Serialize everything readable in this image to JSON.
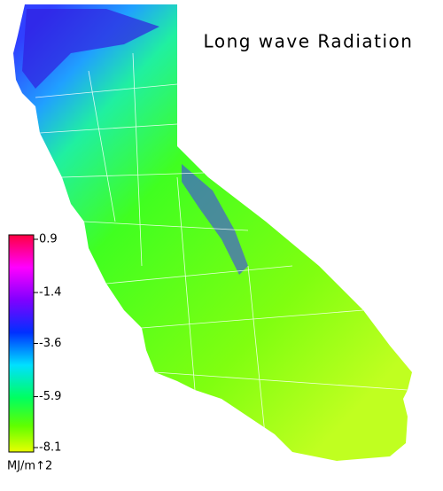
{
  "title": "Long wave Radiation",
  "colorbar": {
    "ticks": [
      0.9,
      -1.4,
      -3.6,
      -5.9,
      -8.1
    ],
    "unit": "MJ/m↑2"
  }
}
